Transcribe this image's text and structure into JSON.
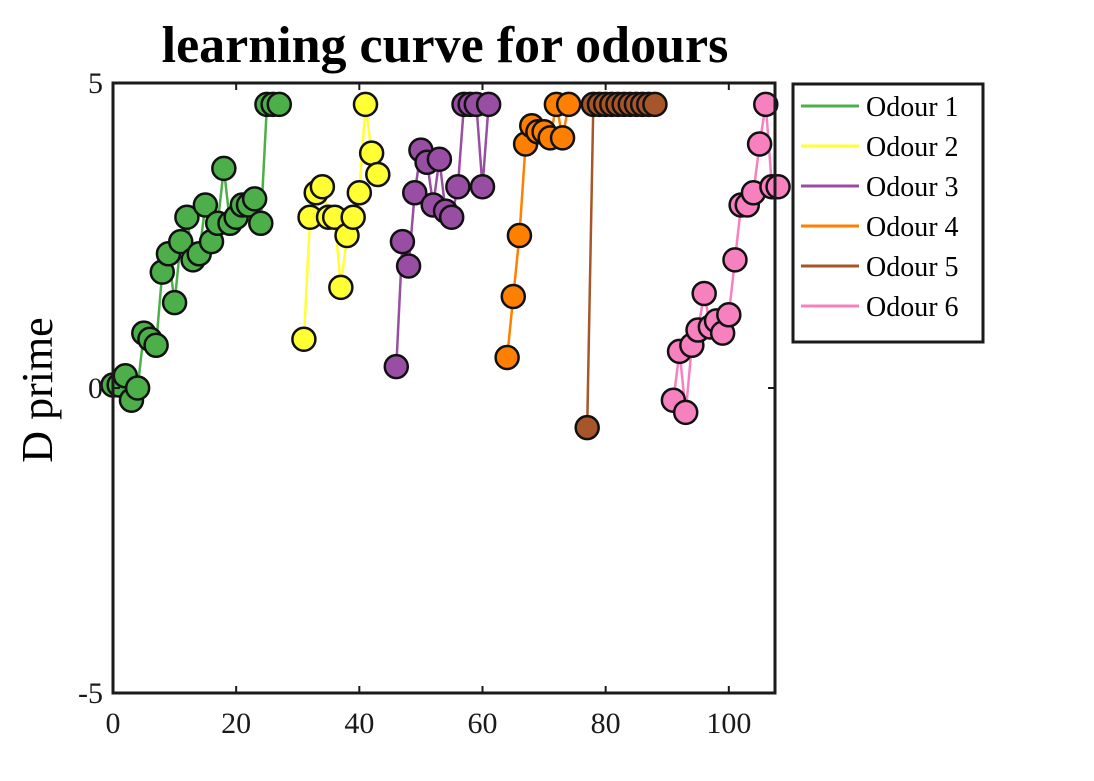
{
  "chart_data": {
    "type": "line",
    "title": "learning curve for odours",
    "xlabel": "",
    "ylabel": "D prime",
    "xlim": [
      0,
      107
    ],
    "ylim": [
      -5,
      5
    ],
    "xticks": [
      0,
      20,
      40,
      60,
      80,
      100
    ],
    "yticks": [
      -5,
      0,
      5
    ],
    "grid": false,
    "legend_position": "outside-right-top",
    "series": [
      {
        "name": "Odour 1",
        "color": "#4daf4a",
        "points": [
          [
            0,
            0.05
          ],
          [
            1,
            0.05
          ],
          [
            2,
            0.2
          ],
          [
            3,
            -0.2
          ],
          [
            4,
            0.0
          ],
          [
            5,
            0.9
          ],
          [
            6,
            0.8
          ],
          [
            7,
            0.7
          ],
          [
            8,
            1.9
          ],
          [
            9,
            2.2
          ],
          [
            10,
            1.4
          ],
          [
            11,
            2.4
          ],
          [
            12,
            2.8
          ],
          [
            13,
            2.1
          ],
          [
            14,
            2.2
          ],
          [
            15,
            3.0
          ],
          [
            16,
            2.4
          ],
          [
            17,
            2.7
          ],
          [
            18,
            3.6
          ],
          [
            19,
            2.7
          ],
          [
            20,
            2.8
          ],
          [
            21,
            3.0
          ],
          [
            22,
            3.0
          ],
          [
            23,
            3.1
          ],
          [
            24,
            2.7
          ],
          [
            25,
            4.65
          ],
          [
            26,
            4.65
          ],
          [
            27,
            4.65
          ]
        ]
      },
      {
        "name": "Odour 2",
        "color": "#ffff33",
        "points": [
          [
            31,
            0.8
          ],
          [
            32,
            2.8
          ],
          [
            33,
            3.2
          ],
          [
            34,
            3.3
          ],
          [
            35,
            2.8
          ],
          [
            36,
            2.8
          ],
          [
            37,
            1.65
          ],
          [
            38,
            2.5
          ],
          [
            39,
            2.8
          ],
          [
            40,
            3.2
          ],
          [
            41,
            4.65
          ],
          [
            42,
            3.85
          ],
          [
            43,
            3.5
          ]
        ]
      },
      {
        "name": "Odour 3",
        "color": "#984ea3",
        "points": [
          [
            46,
            0.35
          ],
          [
            47,
            2.4
          ],
          [
            48,
            2.0
          ],
          [
            49,
            3.2
          ],
          [
            50,
            3.9
          ],
          [
            51,
            3.7
          ],
          [
            52,
            3.0
          ],
          [
            53,
            3.75
          ],
          [
            54,
            2.9
          ],
          [
            55,
            2.8
          ],
          [
            56,
            3.3
          ],
          [
            57,
            4.65
          ],
          [
            58,
            4.65
          ],
          [
            59,
            4.65
          ],
          [
            60,
            3.3
          ],
          [
            61,
            4.65
          ]
        ]
      },
      {
        "name": "Odour 4",
        "color": "#ff7f00",
        "points": [
          [
            64,
            0.5
          ],
          [
            65,
            1.5
          ],
          [
            66,
            2.5
          ],
          [
            67,
            4.0
          ],
          [
            68,
            4.3
          ],
          [
            69,
            4.2
          ],
          [
            70,
            4.2
          ],
          [
            71,
            4.1
          ],
          [
            72,
            4.65
          ],
          [
            73,
            4.1
          ],
          [
            74,
            4.65
          ]
        ]
      },
      {
        "name": "Odour 5",
        "color": "#a65628",
        "points": [
          [
            77,
            -0.65
          ],
          [
            78,
            4.65
          ],
          [
            79,
            4.65
          ],
          [
            80,
            4.65
          ],
          [
            81,
            4.65
          ],
          [
            82,
            4.65
          ],
          [
            83,
            4.65
          ],
          [
            84,
            4.65
          ],
          [
            85,
            4.65
          ],
          [
            86,
            4.65
          ],
          [
            87,
            4.65
          ],
          [
            88,
            4.65
          ]
        ]
      },
      {
        "name": "Odour 6",
        "color": "#f781bf",
        "points": [
          [
            91,
            -0.2
          ],
          [
            92,
            0.6
          ],
          [
            93,
            -0.4
          ],
          [
            94,
            0.7
          ],
          [
            95,
            0.95
          ],
          [
            96,
            1.55
          ],
          [
            97,
            1.0
          ],
          [
            98,
            1.1
          ],
          [
            99,
            0.9
          ],
          [
            100,
            1.2
          ],
          [
            101,
            2.1
          ],
          [
            102,
            3.0
          ],
          [
            103,
            3.0
          ],
          [
            104,
            3.2
          ],
          [
            105,
            4.0
          ],
          [
            106,
            4.65
          ],
          [
            107,
            3.3
          ],
          [
            108,
            3.3
          ]
        ]
      }
    ]
  }
}
